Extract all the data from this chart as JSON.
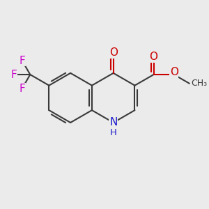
{
  "bg_color": "#ebebeb",
  "bond_color": "#3a3a3a",
  "n_color": "#1a1acc",
  "o_color": "#cc0000",
  "f_color": "#cc00cc",
  "bond_width": 1.5,
  "figsize": [
    3.0,
    3.0
  ],
  "dpi": 100,
  "font_size_atom": 11,
  "font_size_small": 9.5,
  "xlim": [
    0,
    10
  ],
  "ylim": [
    0,
    10
  ],
  "BL": 1.3
}
